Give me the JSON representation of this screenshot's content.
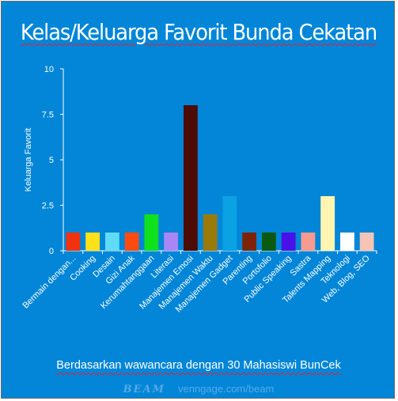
{
  "title": "Kelas/Keluarga Favorit Bunda Cekatan",
  "caption": "Berdasarkan wawancara dengan 30 Mahasiswi BunCek",
  "watermark": {
    "logo": "BEAM",
    "site": "venngage.com/beam"
  },
  "chart_data": {
    "type": "bar",
    "title": "Kelas/Keluarga Favorit Bunda Cekatan",
    "xlabel": "",
    "ylabel": "Keluarga Favorit",
    "ylim": [
      0,
      10
    ],
    "yticks": [
      "0",
      "2.5",
      "5",
      "7.5",
      "10"
    ],
    "grid": false,
    "categories": [
      "Bermain dengan...",
      "Cooking",
      "Desain",
      "Gizi Anak",
      "Kerumahtanggaan",
      "Literasi",
      "Manajemen Emosi",
      "Manajemen Waktu",
      "Manajemen Gadget",
      "Parenting",
      "Portofolio",
      "Public Speaking",
      "Sastra",
      "Talents Mapping",
      "Teknologi",
      "Web, Blog, SEO"
    ],
    "values": [
      1,
      1,
      1,
      1,
      2,
      1,
      8,
      2,
      3,
      1,
      1,
      1,
      1,
      3,
      1,
      1
    ],
    "colors": [
      "#f0320f",
      "#ffe11a",
      "#5fdcf5",
      "#ff4a12",
      "#0fe11e",
      "#a887f5",
      "#4d0c05",
      "#9c7a0a",
      "#0aa2e3",
      "#7f2308",
      "#0c5a12",
      "#4a12e8",
      "#f89a90",
      "#fff5b0",
      "#ffffff",
      "#f5c4b5"
    ]
  }
}
